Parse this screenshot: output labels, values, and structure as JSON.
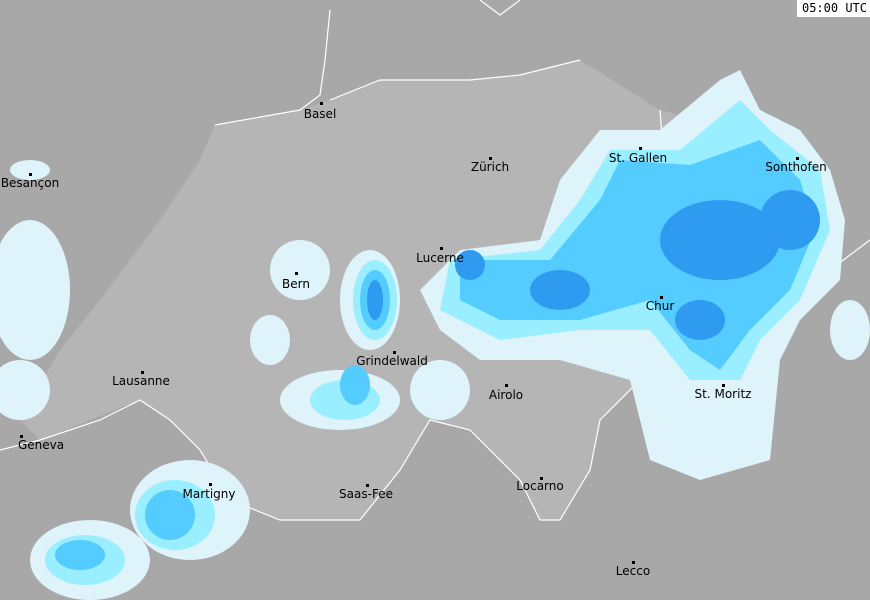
{
  "timestamp": "05:00 UTC",
  "colors": {
    "land": "#a8a8a8",
    "switzerland": "#b5b5b5",
    "border": "#ffffff",
    "precip_light": "#dff3fa",
    "precip_cyan": "#99eeff",
    "precip_medium": "#55ccff",
    "precip_heavy": "#2f9bf0"
  },
  "cities": [
    {
      "name": "Basel"
    },
    {
      "name": "Zürich"
    },
    {
      "name": "St. Gallen"
    },
    {
      "name": "Sonthofen"
    },
    {
      "name": "Besançon"
    },
    {
      "name": "Lucerne"
    },
    {
      "name": "Bern"
    },
    {
      "name": "Chur"
    },
    {
      "name": "Grindelwald"
    },
    {
      "name": "Lausanne"
    },
    {
      "name": "Airolo"
    },
    {
      "name": "St. Moritz"
    },
    {
      "name": "Geneva"
    },
    {
      "name": "Martigny"
    },
    {
      "name": "Saas-Fee"
    },
    {
      "name": "Locarno"
    },
    {
      "name": "Lecco"
    }
  ]
}
